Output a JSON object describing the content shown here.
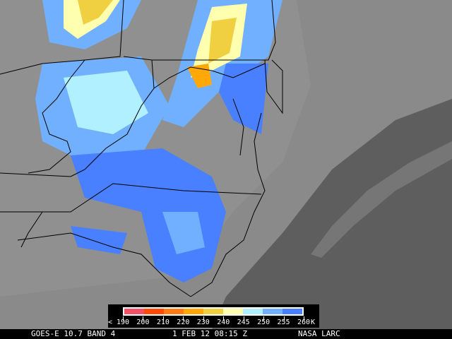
{
  "footer": {
    "satellite": "GOES-E 10.7 BAND 4",
    "datetime": "1 FEB 12 08:15 Z",
    "credit": "NASA LARC"
  },
  "legend": {
    "unit": "K",
    "labels": [
      "< 190",
      "200",
      "210",
      "220",
      "230",
      "240",
      "245",
      "250",
      "255",
      "260"
    ],
    "bins": [
      {
        "range": "190-200",
        "color": "#f05068"
      },
      {
        "range": "200-210",
        "color": "#ff4a08"
      },
      {
        "range": "210-220",
        "color": "#ff7c14"
      },
      {
        "range": "220-230",
        "color": "#ffa808"
      },
      {
        "range": "230-240",
        "color": "#f0d040"
      },
      {
        "range": "240-245",
        "color": "#ffffb0"
      },
      {
        "range": "245-250",
        "color": "#b0f0ff"
      },
      {
        "range": "250-255",
        "color": "#70b0ff"
      },
      {
        "range": "255-260",
        "color": "#4880ff"
      }
    ]
  },
  "map": {
    "background_color": "#8a8a8a",
    "border_color": "#000000",
    "ocean_color": "#5c5c5c"
  }
}
